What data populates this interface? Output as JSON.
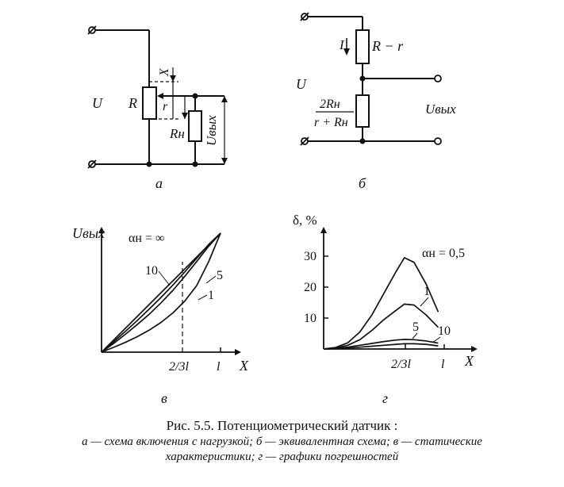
{
  "diagram_a": {
    "panel_letter": "а",
    "labels": {
      "U": "U",
      "R": "R",
      "X": "X",
      "r": "r",
      "Rn": "Rн",
      "Uout": "Uвых"
    }
  },
  "diagram_b": {
    "panel_letter": "б",
    "labels": {
      "U": "U",
      "I": "I",
      "R_minus_r": "R − r",
      "frac_num": "2Rн",
      "frac_den": "r + Rн",
      "Uout": "Uвых"
    }
  },
  "chart_data": [
    {
      "type": "line",
      "panel_letter": "в",
      "ylabel": "Uвых",
      "xlabel": "X",
      "x_ticks": [
        "2/3l",
        "l"
      ],
      "x": [
        0,
        0.1,
        0.2,
        0.3,
        0.4,
        0.5,
        0.6,
        0.7,
        0.8,
        0.9,
        1.0
      ],
      "series": [
        {
          "name": "αн = ∞",
          "values": [
            0,
            0.1,
            0.2,
            0.3,
            0.4,
            0.5,
            0.6,
            0.7,
            0.8,
            0.9,
            1.0
          ]
        },
        {
          "name": "10",
          "values": [
            0,
            0.086,
            0.174,
            0.266,
            0.362,
            0.46,
            0.565,
            0.675,
            0.789,
            0.905,
            1.0
          ]
        },
        {
          "name": "5",
          "values": [
            0,
            0.072,
            0.15,
            0.232,
            0.318,
            0.415,
            0.52,
            0.638,
            0.762,
            0.89,
            1.0
          ]
        },
        {
          "name": "1",
          "values": [
            0,
            0.04,
            0.082,
            0.13,
            0.185,
            0.25,
            0.33,
            0.43,
            0.56,
            0.76,
            1.0
          ]
        }
      ],
      "annotations": [
        "dashed guide at x = 2/3l"
      ]
    },
    {
      "type": "line",
      "panel_letter": "г",
      "ylabel": "δ, %",
      "xlabel": "X",
      "y_ticks": [
        "10",
        "20",
        "30"
      ],
      "ylim": [
        0,
        35
      ],
      "x_ticks": [
        "2/3l",
        "l"
      ],
      "x": [
        0,
        0.1,
        0.2,
        0.3,
        0.4,
        0.5,
        0.6,
        0.67,
        0.75,
        0.85,
        0.95
      ],
      "series": [
        {
          "name": "αн = 0,5",
          "values": [
            0,
            0.5,
            2,
            5.5,
            11,
            18,
            25,
            29.5,
            28,
            21,
            12
          ]
        },
        {
          "name": "1",
          "values": [
            0,
            0.3,
            1.2,
            3,
            6,
            9.5,
            12.5,
            14.5,
            14.2,
            11,
            7
          ]
        },
        {
          "name": "5",
          "values": [
            0,
            0.2,
            0.6,
            1.2,
            1.8,
            2.4,
            2.9,
            3.1,
            3.0,
            2.6,
            1.9
          ]
        },
        {
          "name": "10",
          "values": [
            0,
            0.1,
            0.3,
            0.6,
            0.9,
            1.2,
            1.5,
            1.7,
            1.7,
            1.5,
            1.0
          ]
        }
      ]
    }
  ],
  "caption": {
    "title": "Рис. 5.5. Потенциометрический датчик :",
    "line2": "а — схема включения с нагрузкой; б — эквивалентная схема; в — статические",
    "line3": "характеристики; г — графики погрешностей"
  }
}
